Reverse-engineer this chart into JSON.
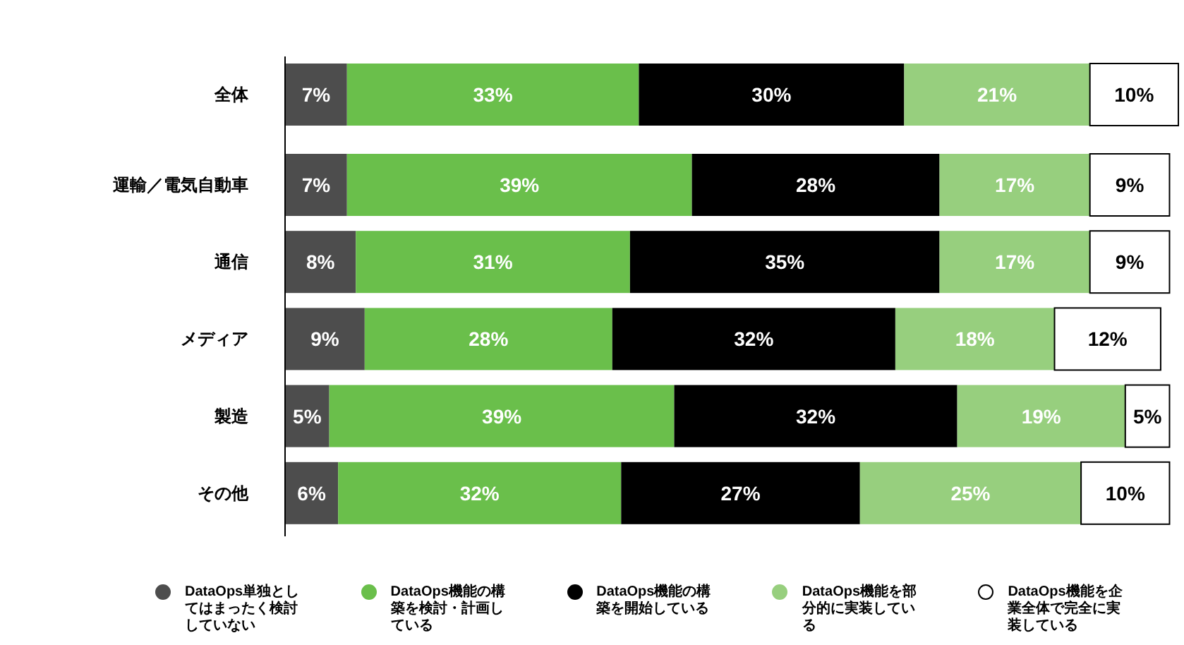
{
  "chart_data": {
    "type": "bar",
    "orientation": "horizontal",
    "stacked": true,
    "legend": "bottom",
    "categories": [
      "全体",
      "運輸／電気自動車",
      "通信",
      "メディア",
      "製造",
      "その他"
    ],
    "series": [
      {
        "name": "DataOps単独としてはまったく検討していない",
        "color": "#4d4d4d",
        "values": [
          7,
          7,
          8,
          9,
          5,
          6
        ],
        "value_labels": [
          "7%",
          "7%",
          "8%",
          "9%",
          "5%",
          "6%"
        ]
      },
      {
        "name": "DataOps機能の構築を検討・計画している",
        "color": "#6abf4b",
        "values": [
          33,
          39,
          31,
          28,
          39,
          32
        ],
        "value_labels": [
          "33%",
          "39%",
          "31%",
          "28%",
          "39%",
          "32%"
        ]
      },
      {
        "name": "DataOps機能の構築を開始している",
        "color": "#000000",
        "values": [
          30,
          28,
          35,
          32,
          32,
          27
        ],
        "value_labels": [
          "30%",
          "28%",
          "35%",
          "32%",
          "32%",
          "27%"
        ]
      },
      {
        "name": "DataOps機能を部分的に実装している",
        "color": "#97cf7e",
        "values": [
          21,
          17,
          17,
          18,
          19,
          25
        ],
        "value_labels": [
          "21%",
          "17%",
          "17%",
          "18%",
          "19%",
          "25%"
        ]
      },
      {
        "name": "DataOps機能を企業全体で完全に実装している",
        "color": "#ffffff",
        "values": [
          10,
          9,
          9,
          12,
          5,
          10
        ],
        "value_labels": [
          "10%",
          "9%",
          "9%",
          "12%",
          "5%",
          "10%"
        ]
      }
    ]
  }
}
